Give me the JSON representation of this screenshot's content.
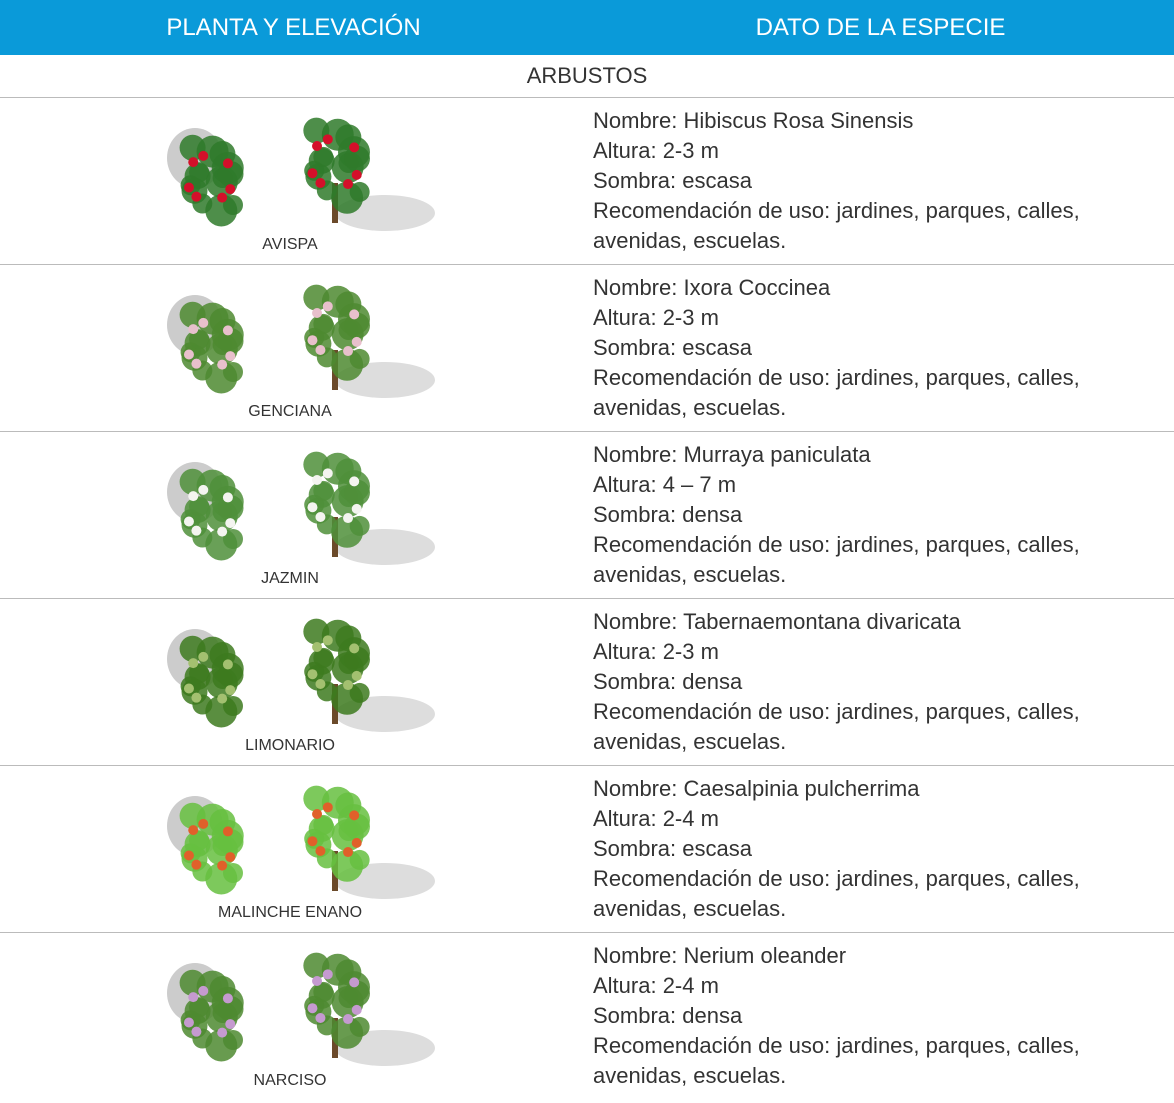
{
  "header": {
    "columns": [
      "PLANTA Y ELEVACIÓN",
      "DATO DE LA ESPECIE"
    ]
  },
  "section": "ARBUSTOS",
  "rows": [
    {
      "name": "AVISPA",
      "details": [
        "Nombre: Hibiscus Rosa Sinensis",
        "Altura: 2-3 m",
        "Sombra: escasa",
        "Recomendación de uso: jardines, parques, calles, avenidas, escuelas."
      ]
    },
    {
      "name": "GENCIANA",
      "details": [
        "Nombre: Ixora Coccinea",
        "Altura: 2-3 m",
        "Sombra: escasa",
        "Recomendación de uso: jardines, parques, calles, avenidas, escuelas."
      ]
    },
    {
      "name": "JAZMIN",
      "details": [
        "Nombre: Murraya paniculata",
        "Altura: 4 – 7 m",
        "Sombra: densa",
        "Recomendación de uso: jardines, parques, calles, avenidas, escuelas."
      ]
    },
    {
      "name": "LIMONARIO",
      "details": [
        "Nombre: Tabernaemontana divaricata",
        "Altura: 2-3 m",
        "Sombra: densa",
        "Recomendación de uso: jardines, parques, calles, avenidas, escuelas."
      ]
    },
    {
      "name": "MALINCHE ENANO",
      "details": [
        "Nombre: Caesalpinia pulcherrima",
        "Altura: 2-4 m",
        "Sombra: escasa",
        "Recomendación de uso: jardines, parques, calles, avenidas, escuelas."
      ]
    },
    {
      "name": "NARCISO",
      "details": [
        "Nombre: Nerium oleander",
        "Altura: 2-4 m",
        "Sombra: densa",
        "Recomendación de uso: jardines, parques, calles, avenidas, escuelas."
      ]
    }
  ]
}
